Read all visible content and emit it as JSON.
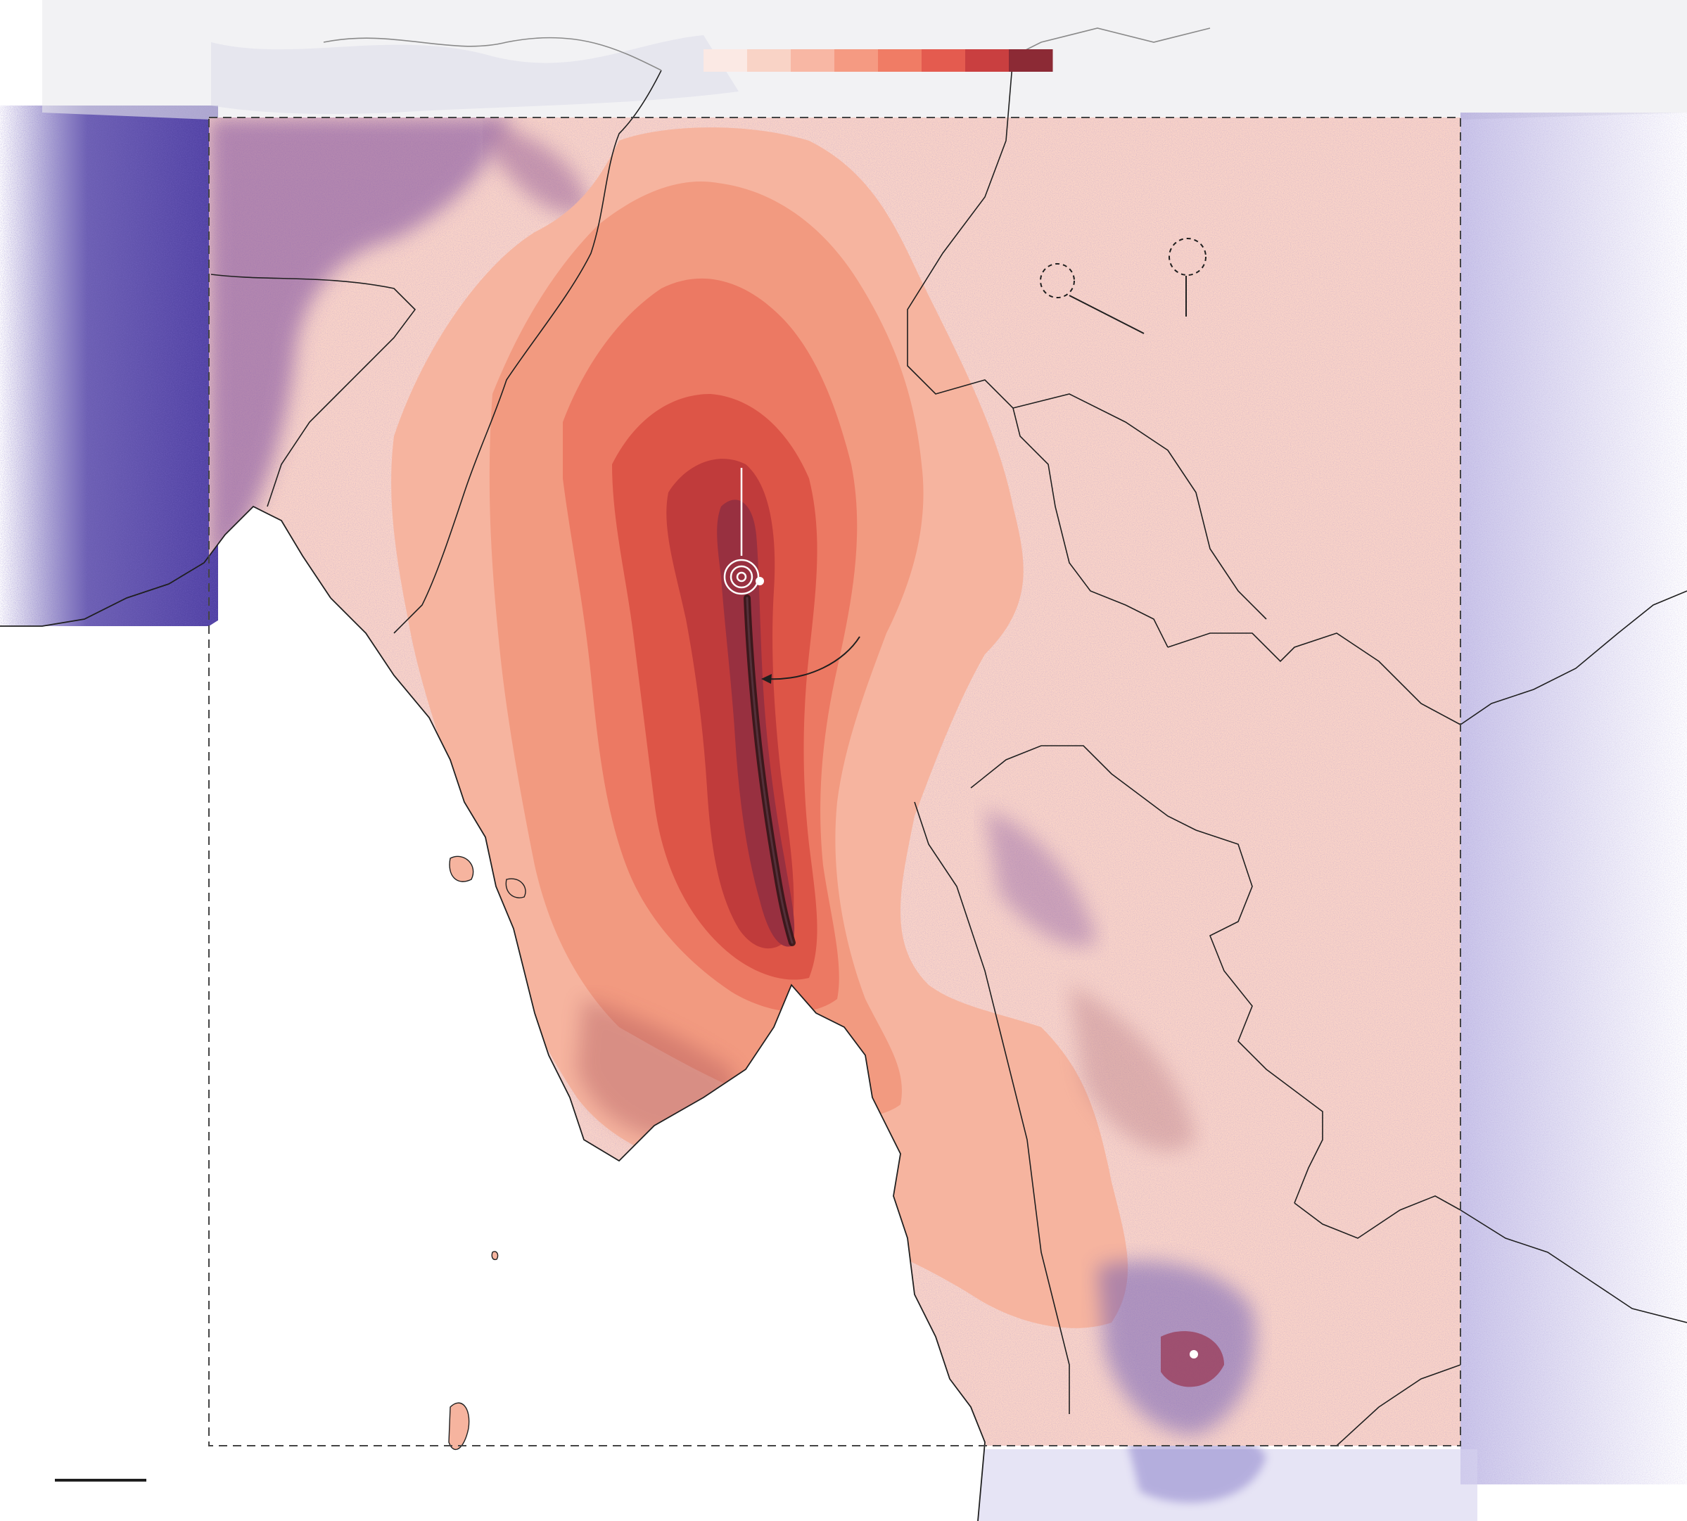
{
  "map": {
    "type": "earthquake shaking intensity over population density",
    "colors": {
      "background": "#ffffff",
      "population": "#3b2a99",
      "country_border": "#1f1f1f",
      "frame": "#444444",
      "markers": "#ffffff",
      "fault": "#2b1416"
    },
    "legend": {
      "ramp_colors": [
        "#fbe9e4",
        "#f9d3c6",
        "#f8b7a4",
        "#f59a82",
        "#f07c65",
        "#e45b4f",
        "#c93f40",
        "#8c2a35"
      ]
    },
    "intensity_bands": [
      {
        "level": 1,
        "color": "#fad4c8"
      },
      {
        "level": 2,
        "color": "#f6b49f"
      },
      {
        "level": 3,
        "color": "#f29a80"
      },
      {
        "level": 4,
        "color": "#ec7963"
      },
      {
        "level": 5,
        "color": "#dd5547"
      },
      {
        "level": 6,
        "color": "#c03b3b"
      },
      {
        "level": 7,
        "color": "#983040"
      }
    ],
    "annotations": {
      "epicenter_marker": "epicenter-icon",
      "city_markers": 2,
      "dashed_circles": 2
    }
  }
}
